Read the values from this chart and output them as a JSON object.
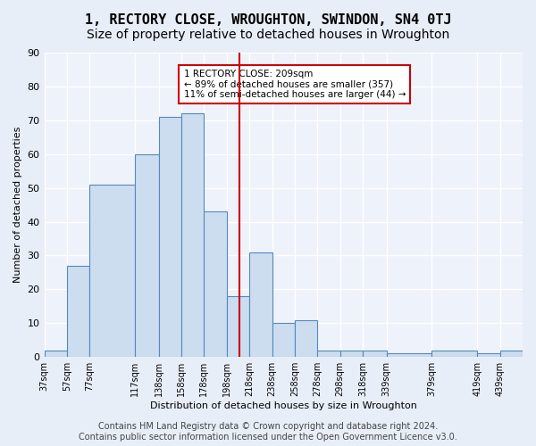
{
  "title": "1, RECTORY CLOSE, WROUGHTON, SWINDON, SN4 0TJ",
  "subtitle": "Size of property relative to detached houses in Wroughton",
  "xlabel": "Distribution of detached houses by size in Wroughton",
  "ylabel": "Number of detached properties",
  "bar_left_edges": [
    37,
    57,
    77,
    117,
    138,
    158,
    178,
    198,
    218,
    238,
    258,
    278,
    298,
    318,
    339,
    379,
    419,
    439
  ],
  "bar_widths": [
    20,
    20,
    40,
    21,
    20,
    20,
    20,
    20,
    20,
    20,
    20,
    20,
    20,
    21,
    40,
    40,
    20,
    20
  ],
  "bar_heights": [
    2,
    27,
    51,
    60,
    71,
    72,
    43,
    18,
    31,
    10,
    11,
    2,
    2,
    2,
    1,
    2,
    1,
    2
  ],
  "bar_color": "#ccddf0",
  "bar_edge_color": "#5588bb",
  "red_line_x": 209,
  "red_line_color": "#cc0000",
  "annotation_text": "1 RECTORY CLOSE: 209sqm\n← 89% of detached houses are smaller (357)\n11% of semi-detached houses are larger (44) →",
  "annotation_box_color": "#ffffff",
  "annotation_box_edge_color": "#cc0000",
  "ylim": [
    0,
    90
  ],
  "xlim": [
    37,
    459
  ],
  "xtick_labels": [
    "37sqm",
    "57sqm",
    "77sqm",
    "117sqm",
    "138sqm",
    "158sqm",
    "178sqm",
    "198sqm",
    "218sqm",
    "238sqm",
    "258sqm",
    "278sqm",
    "298sqm",
    "318sqm",
    "339sqm",
    "379sqm",
    "419sqm",
    "439sqm"
  ],
  "xtick_positions": [
    37,
    57,
    77,
    117,
    138,
    158,
    178,
    198,
    218,
    238,
    258,
    278,
    298,
    318,
    339,
    379,
    419,
    439
  ],
  "background_color": "#e8eef8",
  "plot_bg_color": "#eef2fa",
  "grid_color": "#ffffff",
  "title_fontsize": 11,
  "subtitle_fontsize": 10,
  "footer_text": "Contains HM Land Registry data © Crown copyright and database right 2024.\nContains public sector information licensed under the Open Government Licence v3.0.",
  "footer_fontsize": 7
}
